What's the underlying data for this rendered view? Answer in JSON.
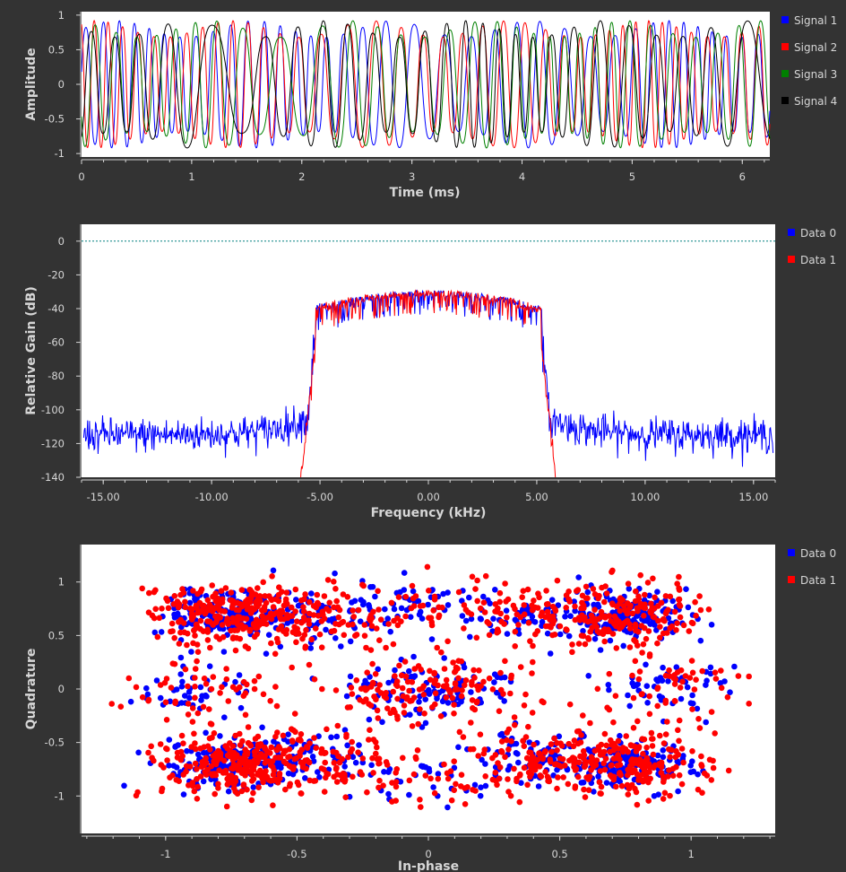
{
  "chart_data": [
    {
      "type": "line",
      "xlabel": "Time (ms)",
      "ylabel": "Amplitude",
      "xlim": [
        0,
        6.25
      ],
      "ylim": [
        -1.05,
        1.05
      ],
      "xticks": [
        "0",
        "1",
        "2",
        "3",
        "4",
        "5",
        "6"
      ],
      "yticks": [
        "1",
        "0.5",
        "0",
        "-0.5",
        "-1"
      ],
      "background": "#ffffff",
      "legend_position": "right",
      "series": [
        {
          "name": "Signal 1",
          "color": "#0000ff"
        },
        {
          "name": "Signal 2",
          "color": "#ff0000"
        },
        {
          "name": "Signal 3",
          "color": "#008000"
        },
        {
          "name": "Signal 4",
          "color": "#000000"
        }
      ]
    },
    {
      "type": "line",
      "xlabel": "Frequency (kHz)",
      "ylabel": "Relative Gain (dB)",
      "xlim": [
        -16,
        16
      ],
      "ylim": [
        -140,
        10
      ],
      "xticks": [
        "-15.00",
        "-10.00",
        "-5.00",
        "0.00",
        "5.00",
        "10.00",
        "15.00"
      ],
      "yticks": [
        "0",
        "-20",
        "-40",
        "-60",
        "-80",
        "-100",
        "-120",
        "-140"
      ],
      "reference_line_db": 0,
      "reference_line_color": "#008080",
      "background": "#ffffff",
      "legend_position": "right",
      "series": [
        {
          "name": "Data 0",
          "color": "#0000ff",
          "passband_khz": [
            -5.2,
            5.2
          ],
          "passband_db": -35,
          "floor_db": -115
        },
        {
          "name": "Data 1",
          "color": "#ff0000",
          "passband_khz": [
            -5.2,
            5.2
          ],
          "passband_db": -35,
          "floor_db": -145
        }
      ]
    },
    {
      "type": "scatter",
      "xlabel": "In-phase",
      "ylabel": "Quadrature",
      "xlim": [
        -1.32,
        1.32
      ],
      "ylim": [
        -1.35,
        1.35
      ],
      "xticks": [
        "-1",
        "-0.5",
        "0",
        "0.5",
        "1"
      ],
      "yticks": [
        "1",
        "0.5",
        "0",
        "-0.5",
        "-1"
      ],
      "background": "#ffffff",
      "legend_position": "right",
      "series": [
        {
          "name": "Data 0",
          "color": "#0000ff"
        },
        {
          "name": "Data 1",
          "color": "#ff0000"
        }
      ]
    }
  ]
}
